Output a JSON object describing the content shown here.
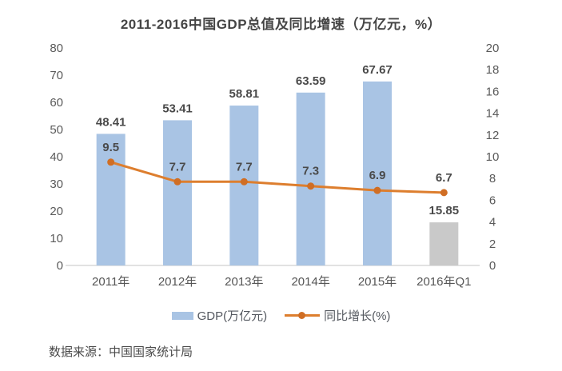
{
  "title": "2011-2016中国GDP总值及同比增速（万亿元，%）",
  "source": "数据来源：中国国家统计局",
  "legend": [
    {
      "label": "GDP(万亿元)",
      "type": "bar",
      "color": "#a9c4e4"
    },
    {
      "label": "同比增长(%)",
      "type": "line",
      "color": "#dd7e2e"
    }
  ],
  "colors": {
    "bar_blue": "#a9c4e4",
    "bar_gray": "#c9c9c9",
    "line_orange": "#dd7e2e",
    "marker_orange": "#d06e24",
    "baseline_gray": "#d9d9d9",
    "axis_text": "#5a5a5a",
    "label_text": "#4a4a4a",
    "title_text": "#454545"
  },
  "chart_data": {
    "type": "bar",
    "subtype": "combo-bar-line",
    "title": "2011-2016中国GDP总值及同比增速（万亿元，%）",
    "categories": [
      "2011年",
      "2012年",
      "2013年",
      "2014年",
      "2015年",
      "2016年Q1"
    ],
    "series": [
      {
        "name": "GDP(万亿元)",
        "type": "bar",
        "axis": "left",
        "values": [
          48.41,
          53.41,
          58.81,
          63.59,
          67.67,
          15.85
        ],
        "colors": [
          "#a9c4e4",
          "#a9c4e4",
          "#a9c4e4",
          "#a9c4e4",
          "#a9c4e4",
          "#c9c9c9"
        ]
      },
      {
        "name": "同比增长(%)",
        "type": "line",
        "axis": "right",
        "values": [
          9.5,
          7.7,
          7.7,
          7.3,
          6.9,
          6.7
        ],
        "color": "#dd7e2e",
        "marker_color": "#d06e24"
      }
    ],
    "left_axis": {
      "min": 0,
      "max": 80,
      "step": 10
    },
    "right_axis": {
      "min": 0,
      "max": 20,
      "step": 2
    },
    "grid": false,
    "legend_position": "bottom",
    "data_labels": true
  }
}
